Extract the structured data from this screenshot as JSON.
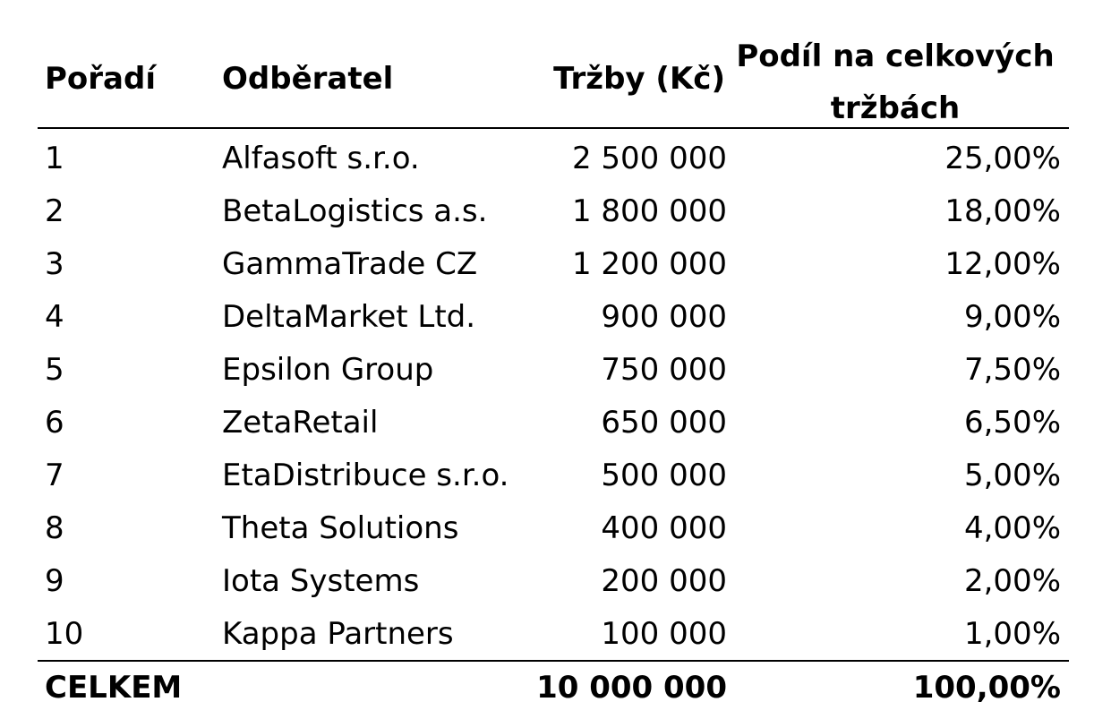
{
  "table": {
    "headers": {
      "rank": "Pořadí",
      "customer": "Odběratel",
      "sales": "Tržby (Kč)",
      "share": "Podíl na celkových tržbách"
    },
    "rows": [
      {
        "rank": "1",
        "customer": "Alfasoft s.r.o.",
        "sales": "2 500 000",
        "share": "25,00%"
      },
      {
        "rank": "2",
        "customer": "BetaLogistics a.s.",
        "sales": "1 800 000",
        "share": "18,00%"
      },
      {
        "rank": "3",
        "customer": "GammaTrade CZ",
        "sales": "1 200 000",
        "share": "12,00%"
      },
      {
        "rank": "4",
        "customer": "DeltaMarket Ltd.",
        "sales": "900 000",
        "share": "9,00%"
      },
      {
        "rank": "5",
        "customer": "Epsilon Group",
        "sales": "750 000",
        "share": "7,50%"
      },
      {
        "rank": "6",
        "customer": "ZetaRetail",
        "sales": "650 000",
        "share": "6,50%"
      },
      {
        "rank": "7",
        "customer": "EtaDistribuce s.r.o.",
        "sales": "500 000",
        "share": "5,00%"
      },
      {
        "rank": "8",
        "customer": "Theta Solutions",
        "sales": "400 000",
        "share": "4,00%"
      },
      {
        "rank": "9",
        "customer": "Iota Systems",
        "sales": "200 000",
        "share": "2,00%"
      },
      {
        "rank": "10",
        "customer": "Kappa Partners",
        "sales": "100 000",
        "share": "1,00%"
      }
    ],
    "total": {
      "label": "CELKEM",
      "sales": "10 000 000",
      "share": "100,00%"
    }
  }
}
